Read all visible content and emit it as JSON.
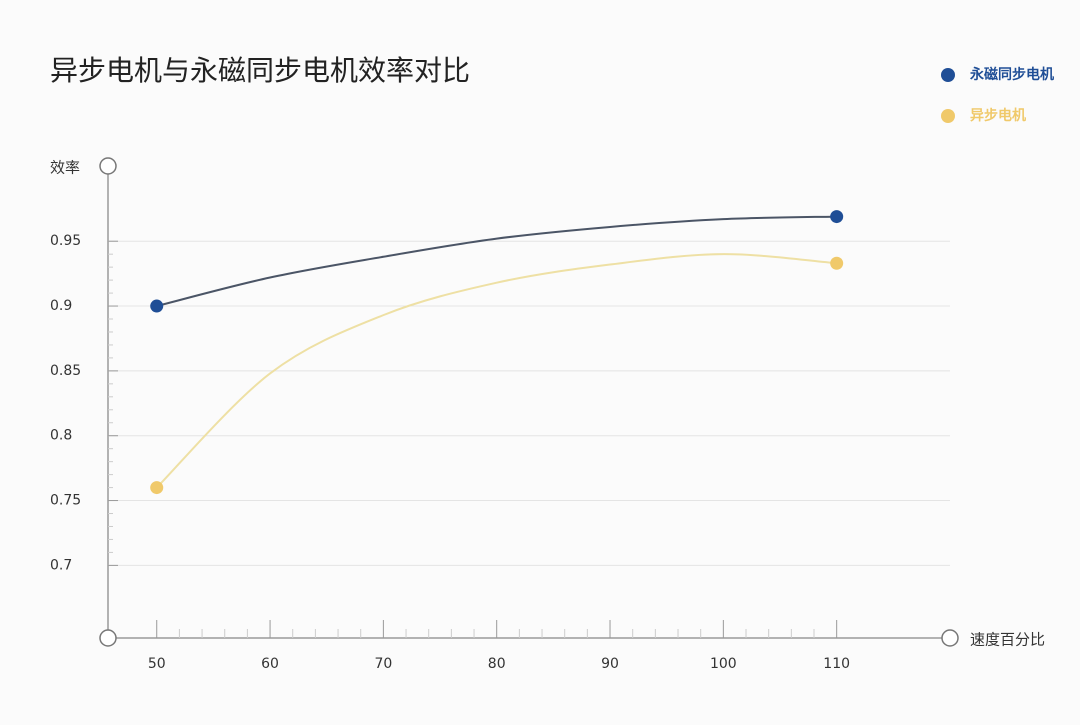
{
  "chart_data": {
    "type": "line",
    "title": "异步电机与永磁同步电机效率对比",
    "y_label": "效率",
    "x_label": "速度百分比",
    "x": [
      50,
      60,
      70,
      80,
      90,
      100,
      110
    ],
    "series": [
      {
        "name": "永磁同步电机",
        "color": "#1f4e96",
        "line_color": "#4b5566",
        "values": [
          0.9,
          0.922,
          0.938,
          0.952,
          0.961,
          0.967,
          0.969
        ]
      },
      {
        "name": "异步电机",
        "color": "#f0c96a",
        "line_color": "#eee0a4",
        "values": [
          0.76,
          0.848,
          0.893,
          0.918,
          0.932,
          0.94,
          0.933
        ]
      }
    ],
    "xlim": [
      45.7,
      120
    ],
    "ylim": [
      0.644,
      1.008
    ],
    "xticks": [
      50,
      60,
      70,
      80,
      90,
      100,
      110
    ],
    "yticks": [
      0.7,
      0.75,
      0.8,
      0.85,
      0.9,
      0.95
    ],
    "grid": true,
    "legend": "top-right"
  }
}
